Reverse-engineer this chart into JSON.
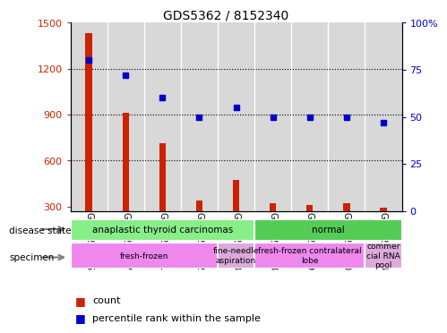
{
  "title": "GDS5362 / 8152340",
  "samples": [
    "GSM1281636",
    "GSM1281637",
    "GSM1281641",
    "GSM1281642",
    "GSM1281643",
    "GSM1281638",
    "GSM1281639",
    "GSM1281640",
    "GSM1281644"
  ],
  "counts": [
    1430,
    910,
    710,
    340,
    470,
    320,
    310,
    320,
    290
  ],
  "percentiles": [
    80,
    72,
    60,
    50,
    55,
    50,
    50,
    50,
    47
  ],
  "ylim_left": [
    270,
    1500
  ],
  "ylim_right": [
    0,
    100
  ],
  "yticks_left": [
    300,
    600,
    900,
    1200,
    1500
  ],
  "yticks_right": [
    0,
    25,
    50,
    75,
    100
  ],
  "bar_color": "#cc2200",
  "dot_color": "#0000cc",
  "grid_color": "#000000",
  "col_bg_color": "#d8d8d8",
  "disease_state_groups": [
    {
      "label": "anaplastic thyroid carcinomas",
      "start": 0,
      "end": 5,
      "color": "#88ee88"
    },
    {
      "label": "normal",
      "start": 5,
      "end": 9,
      "color": "#55cc55"
    }
  ],
  "specimen_groups": [
    {
      "label": "fresh-frozen",
      "start": 0,
      "end": 4,
      "color": "#ee88ee"
    },
    {
      "label": "fine-needle\naspiration",
      "start": 4,
      "end": 5,
      "color": "#ddaadd"
    },
    {
      "label": "fresh-frozen contralateral\nlobe",
      "start": 5,
      "end": 8,
      "color": "#ee88ee"
    },
    {
      "label": "commer\ncial RNA\npool",
      "start": 8,
      "end": 9,
      "color": "#ddaadd"
    }
  ],
  "legend_count_label": "count",
  "legend_percentile_label": "percentile rank within the sample"
}
